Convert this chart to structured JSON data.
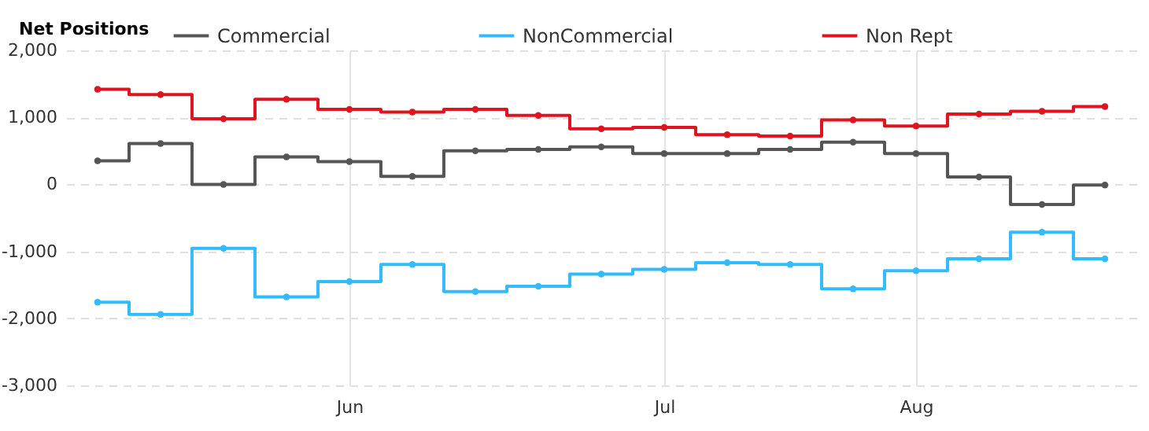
{
  "chart_data": {
    "type": "step",
    "legend_title": "Net Positions",
    "legend": "top",
    "grid": true,
    "marker": "circle",
    "categories": [
      null,
      null,
      null,
      null,
      "Jun",
      null,
      null,
      null,
      null,
      "Jul",
      null,
      null,
      null,
      "Aug",
      null,
      null,
      null
    ],
    "ylim": [
      -3000,
      2000
    ],
    "yticks": [
      {
        "value": -3000,
        "label": "-3,000"
      },
      {
        "value": -2000,
        "label": "-2,000"
      },
      {
        "value": -1000,
        "label": "-1,000"
      },
      0,
      {
        "value": 1000,
        "label": "1,000"
      },
      {
        "value": 2000,
        "label": "2,000"
      }
    ],
    "series": [
      {
        "name": "Commercial",
        "color": "#555555",
        "values": [
          350,
          610,
          0,
          410,
          340,
          120,
          500,
          520,
          560,
          460,
          460,
          520,
          630,
          460,
          110,
          -300,
          -10
        ]
      },
      {
        "name": "NonCommercial",
        "color": "#33bbff",
        "values": [
          -1760,
          -1940,
          -955,
          -1680,
          -1450,
          -1195,
          -1600,
          -1520,
          -1340,
          -1270,
          -1170,
          -1195,
          -1560,
          -1290,
          -1110,
          -715,
          -1110
        ]
      },
      {
        "name": "Non Rept",
        "color": "#e0141e",
        "values": [
          1420,
          1340,
          980,
          1270,
          1120,
          1080,
          1120,
          1030,
          830,
          850,
          740,
          720,
          960,
          870,
          1050,
          1090,
          1160
        ]
      }
    ]
  }
}
